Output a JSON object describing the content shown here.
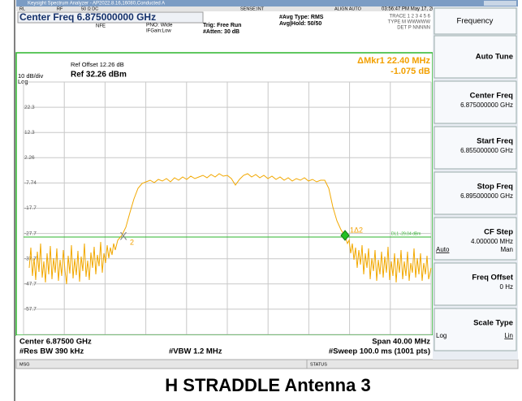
{
  "window": {
    "title": "Keysight Spectrum Analyzer - AP2022.8.16,16080,Conducted A"
  },
  "status_row": {
    "rl": "RL",
    "rf": "RF",
    "input": "50 Ω  DC",
    "sense": "SENSE:INT",
    "align": "ALIGN AUTO",
    "datetime": "03:56:47 PM May 17, 2024"
  },
  "header": {
    "center_freq": "Center Freq 6.875000000 GHz",
    "nfe": "NFE",
    "pno": "PNO: Wide",
    "ifgain": "IFGain:Low",
    "trig": "Trig: Free Run",
    "atten": "#Atten: 30 dB",
    "avg_type": "#Avg Type: RMS",
    "avg_hold": "Avg|Hold: 50/50",
    "trace": "TRACE 1 2 3 4 5 6",
    "type": "TYPE M WWWWW",
    "det": "DET P NNNNN"
  },
  "plot": {
    "ref_offset": "Ref Offset 12.26 dB",
    "scale": "10 dB/div",
    "ref_level": "Ref 32.26 dBm",
    "log": "Log",
    "marker_delta": "ΔMkr1 22.40 MHz",
    "marker_value": "-1.075 dB",
    "y_labels": [
      "22.3",
      "12.3",
      "2.26",
      "-7.74",
      "-17.7",
      "-27.7",
      "-37.7",
      "-47.7",
      "-57.7"
    ],
    "display_line": "DL1 -29.04 dBm",
    "marker2": "2",
    "marker1": "1Δ2"
  },
  "footer": {
    "center": "Center 6.87500 GHz",
    "span": "Span 40.00 MHz",
    "rbw": "#Res BW 390 kHz",
    "vbw": "#VBW 1.2 MHz",
    "sweep": "#Sweep  100.0 ms (1001 pts)",
    "msg": "MSG",
    "status": "STATUS"
  },
  "menu": {
    "title": "Frequency",
    "keys": [
      {
        "label": "Auto Tune"
      },
      {
        "label": "Center Freq",
        "value": "6.875000000 GHz"
      },
      {
        "label": "Start Freq",
        "value": "6.855000000 GHz"
      },
      {
        "label": "Stop Freq",
        "value": "6.895000000 GHz"
      },
      {
        "label": "CF Step",
        "value": "4.000000 MHz",
        "left": "Auto",
        "right": "Man"
      },
      {
        "label": "Freq Offset",
        "value": "0 Hz"
      },
      {
        "label": "Scale Type",
        "left": "Log",
        "right": "Lin"
      }
    ]
  },
  "caption": "H STRADDLE Antenna 3"
}
